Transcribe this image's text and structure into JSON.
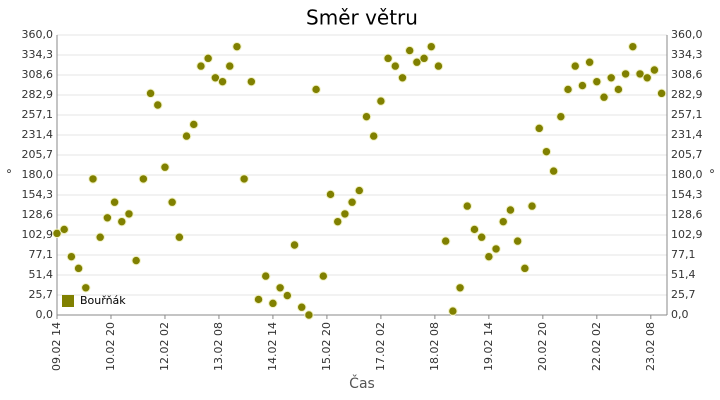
{
  "chart_data": {
    "type": "scatter",
    "title": "Směr větru",
    "xlabel": "Čas",
    "ylabel": "°",
    "legend": "lower left",
    "series": [
      {
        "name": "Bouřňák",
        "color": "#808000",
        "x": [
          "09.02 14",
          "09.02 18",
          "09.02 22",
          "10.02 02",
          "10.02 06",
          "10.02 10",
          "10.02 14",
          "10.02 18",
          "10.02 22",
          "11.02 02",
          "11.02 06",
          "11.02 10",
          "11.02 14",
          "11.02 18",
          "11.02 22",
          "12.02 02",
          "12.02 06",
          "12.02 10",
          "12.02 14",
          "12.02 18",
          "12.02 22",
          "13.02 02",
          "13.02 06",
          "13.02 10",
          "13.02 14",
          "13.02 18",
          "13.02 22",
          "14.02 02",
          "14.02 06",
          "14.02 10",
          "14.02 14",
          "14.02 18",
          "14.02 22",
          "15.02 02",
          "15.02 06",
          "15.02 10",
          "15.02 14",
          "15.02 18",
          "15.02 22",
          "16.02 02",
          "16.02 06",
          "16.02 10",
          "16.02 14",
          "16.02 18",
          "16.02 22",
          "17.02 02",
          "17.02 06",
          "17.02 10",
          "17.02 14",
          "17.02 18",
          "17.02 22",
          "18.02 02",
          "18.02 06",
          "18.02 10",
          "18.02 14",
          "18.02 18",
          "18.02 22",
          "19.02 02",
          "19.02 06",
          "19.02 10",
          "19.02 14",
          "19.02 18",
          "19.02 22",
          "20.02 02",
          "20.02 06",
          "20.02 10",
          "20.02 14",
          "20.02 18",
          "20.02 22",
          "21.02 02",
          "21.02 06",
          "21.02 10",
          "21.02 14",
          "21.02 18",
          "21.02 22",
          "22.02 02",
          "22.02 06",
          "22.02 10",
          "22.02 14",
          "22.02 18",
          "22.02 22",
          "23.02 02",
          "23.02 06",
          "23.02 10",
          "23.02 14"
        ],
        "values": [
          105,
          110,
          75,
          60,
          35,
          175,
          100,
          125,
          145,
          120,
          130,
          70,
          175,
          285,
          270,
          190,
          145,
          100,
          230,
          245,
          320,
          330,
          305,
          300,
          320,
          345,
          175,
          300,
          20,
          50,
          15,
          35,
          25,
          90,
          10,
          0,
          290,
          50,
          155,
          120,
          130,
          145,
          160,
          255,
          230,
          275,
          330,
          320,
          305,
          340,
          325,
          330,
          345,
          320,
          95,
          5,
          35,
          140,
          110,
          100,
          75,
          85,
          120,
          135,
          95,
          60,
          140,
          240,
          210,
          185,
          255,
          290,
          320,
          295,
          325,
          300,
          280,
          305,
          290,
          310,
          345,
          310,
          305,
          315,
          285
        ]
      }
    ],
    "xlim": [
      "09.02 14",
      "23.02 17"
    ],
    "xticks": [
      "09.02 14",
      "10.02 20",
      "12.02 02",
      "13.02 08",
      "14.02 14",
      "15.02 20",
      "17.02 02",
      "18.02 08",
      "19.02 14",
      "20.02 20",
      "22.02 02",
      "23.02 08"
    ],
    "ylim": [
      0,
      360
    ],
    "yticks": [
      {
        "value": 0,
        "label": "0,0"
      },
      {
        "value": 25.7,
        "label": "25,7"
      },
      {
        "value": 51.4,
        "label": "51,4"
      },
      {
        "value": 77.1,
        "label": "77,1"
      },
      {
        "value": 102.9,
        "label": "102,9"
      },
      {
        "value": 128.6,
        "label": "128,6"
      },
      {
        "value": 154.3,
        "label": "154,3"
      },
      {
        "value": 180,
        "label": "180,0"
      },
      {
        "value": 205.7,
        "label": "205,7"
      },
      {
        "value": 231.4,
        "label": "231,4"
      },
      {
        "value": 257.1,
        "label": "257,1"
      },
      {
        "value": 282.9,
        "label": "282,9"
      },
      {
        "value": 308.6,
        "label": "308,6"
      },
      {
        "value": 334.3,
        "label": "334,3"
      },
      {
        "value": 360,
        "label": "360,0"
      }
    ],
    "grid": true
  }
}
